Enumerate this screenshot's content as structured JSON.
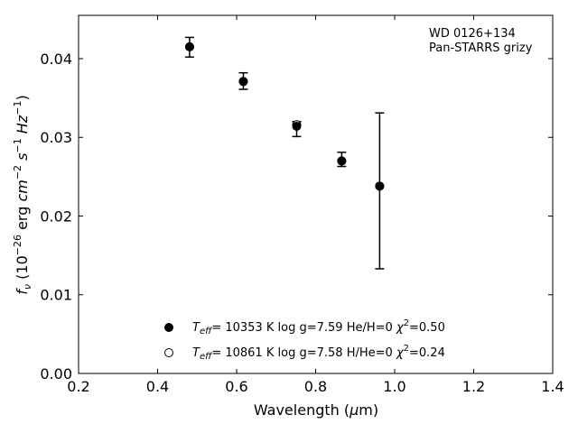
{
  "chart_data": {
    "type": "scatter",
    "xlabel": "Wavelength (μm)",
    "ylabel": "f_ν (10^-26 erg cm^-2 s^-1 Hz^-1)",
    "xlim": [
      0.2,
      1.4
    ],
    "ylim": [
      0.0,
      0.0455
    ],
    "x_ticks": [
      "0.2",
      "0.4",
      "0.6",
      "0.8",
      "1.0",
      "1.2",
      "1.4"
    ],
    "y_ticks": [
      "0.00",
      "0.01",
      "0.02",
      "0.03",
      "0.04"
    ],
    "grid": false,
    "annotation": [
      "WD 0126+134",
      "Pan-STARRS grizy"
    ],
    "observed": {
      "x": [
        0.481,
        0.617,
        0.752,
        0.866,
        0.962
      ],
      "y": [
        0.0415,
        0.0371,
        0.0311,
        0.0272,
        0.0232
      ],
      "err_low": [
        0.0402,
        0.0361,
        0.0301,
        0.0263,
        0.0133
      ],
      "err_high": [
        0.0427,
        0.0382,
        0.032,
        0.0281,
        0.0331
      ]
    },
    "series": [
      {
        "name": "Teff= 10353 K  log g=7.59  He/H=0  χ2=0.50",
        "marker": "filled",
        "x": [
          0.481,
          0.617,
          0.752,
          0.866,
          0.962
        ],
        "y": [
          0.0415,
          0.0371,
          0.0314,
          0.027,
          0.0238
        ]
      },
      {
        "name": "Teff= 10861 K  log g=7.58  H/He=0  χ2=0.24",
        "marker": "open",
        "x": [
          0.481,
          0.617,
          0.752,
          0.866,
          0.962
        ],
        "y": [
          0.0415,
          0.0371,
          0.0316,
          0.027,
          0.0238
        ]
      }
    ],
    "legend": {
      "placement": "lower-center",
      "entries": [
        {
          "teff": "= 10353 K",
          "logg": "log g=7.59",
          "comp": "He/H=0",
          "chi": "=0.50"
        },
        {
          "teff": "= 10861 K",
          "logg": "log g=7.58",
          "comp": "H/He=0",
          "chi": "=0.24"
        }
      ]
    }
  }
}
